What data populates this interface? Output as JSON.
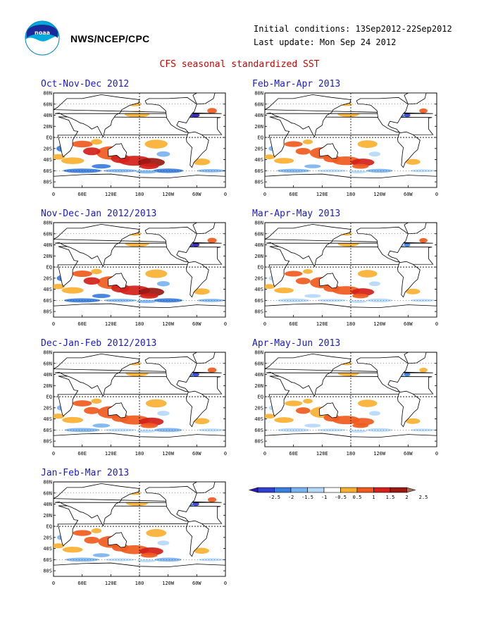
{
  "header": {
    "organization": "NWS/NCEP/CPC",
    "initial_conditions": "Initial conditions: 13Sep2012-22Sep2012",
    "last_update": "Last update: Mon Sep 24 2012",
    "title": "CFS seasonal standardized SST"
  },
  "logo": {
    "text": "noaa",
    "icon": "noaa-logo-icon"
  },
  "map_axes": {
    "lat_labels": [
      "80N",
      "60N",
      "40N",
      "20N",
      "EQ",
      "20S",
      "40S",
      "60S",
      "80S"
    ],
    "lon_labels": [
      "0",
      "60E",
      "120E",
      "180",
      "120W",
      "60W",
      "0"
    ]
  },
  "panels": [
    {
      "id": "ond",
      "title": "Oct-Nov-Dec 2012",
      "intensity": 1.0
    },
    {
      "id": "ndj",
      "title": "Nov-Dec-Jan 2012/2013",
      "intensity": 0.85
    },
    {
      "id": "djf",
      "title": "Dec-Jan-Feb 2012/2013",
      "intensity": 0.72
    },
    {
      "id": "jfm",
      "title": "Jan-Feb-Mar 2013",
      "intensity": 0.62
    },
    {
      "id": "fma",
      "title": "Feb-Mar-Apr 2013",
      "intensity": 0.55
    },
    {
      "id": "mam",
      "title": "Mar-Apr-May 2013",
      "intensity": 0.5
    },
    {
      "id": "amj",
      "title": "Apr-May-Jun 2013",
      "intensity": 0.48
    }
  ],
  "legend": {
    "tick_labels": [
      "-2.5",
      "-2",
      "-1.5",
      "-1",
      "-0.5",
      "0.5",
      "1",
      "1.5",
      "2",
      "2.5"
    ],
    "colors": [
      "#2a1ab0",
      "#3040d0",
      "#3a7ee0",
      "#7ab4f0",
      "#b4d8f8",
      "#ffffff",
      "#f8b030",
      "#f05a1e",
      "#d4201a",
      "#9a1810",
      "#a87058"
    ]
  }
}
